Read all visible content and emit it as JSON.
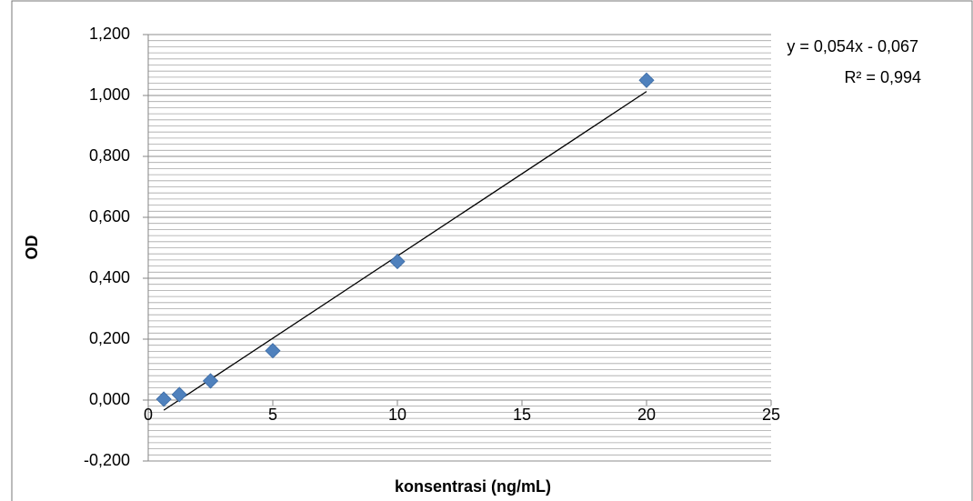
{
  "chart_data": {
    "type": "scatter",
    "x_label": "konsentrasi (ng/mL)",
    "y_label": "OD",
    "x": [
      0.625,
      1.25,
      2.5,
      5,
      10,
      20
    ],
    "values": [
      0.003,
      0.018,
      0.063,
      0.162,
      0.455,
      1.05
    ],
    "color": "#4f81bd",
    "xlim": [
      0,
      25
    ],
    "xticks": [
      0,
      5,
      10,
      15,
      20,
      25
    ],
    "ylim": [
      -0.2,
      1.2
    ],
    "yticks": [
      {
        "value": -0.2,
        "label": "-0,200"
      },
      {
        "value": 0,
        "label": "0,000"
      },
      {
        "value": 0.2,
        "label": "0,200"
      },
      {
        "value": 0.4,
        "label": "0,400"
      },
      {
        "value": 0.6,
        "label": "0,600"
      },
      {
        "value": 0.8,
        "label": "0,800"
      },
      {
        "value": 1.0,
        "label": "1,000"
      },
      {
        "value": 1.2,
        "label": "1,200"
      }
    ],
    "grid": true,
    "minor_grid_per_tick": 10,
    "trendline": {
      "slope": 0.054,
      "intercept": -0.067,
      "equation": "y = 0,054x - 0,067",
      "r_squared": "R² = 0,994"
    }
  }
}
